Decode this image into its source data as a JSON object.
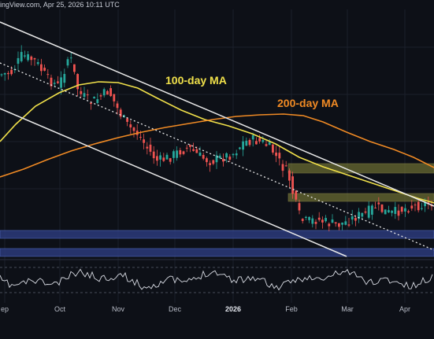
{
  "header": {
    "text": "ingView.com, Apr 25, 2026 10:11 UTC"
  },
  "colors": {
    "background": "#0d1017",
    "grid": "#1b202b",
    "up": "#26a69a",
    "down": "#ef5350",
    "ma100": "#f0e04a",
    "ma200": "#f08a24",
    "trendline": "#e8e8e8",
    "support_band": "#2b3a7a",
    "resistance_band": "#8a8a3a",
    "rsi": "#d8dbe3"
  },
  "chart_data": {
    "type": "candlestick",
    "title": "",
    "x_ticks": [
      "ep",
      "Oct",
      "Nov",
      "Dec",
      "2026",
      "Feb",
      "Mar",
      "Apr"
    ],
    "bold_ticks": [
      "2026"
    ],
    "ma_labels": [
      {
        "text": "100-day MA",
        "series": "ma100"
      },
      {
        "text": "200-day MA",
        "series": "ma200"
      }
    ],
    "series": [
      {
        "name": "",
        "key": "ma100",
        "style": "line"
      },
      {
        "name": "",
        "key": "ma200",
        "style": "line"
      }
    ],
    "annotations": [
      "descending channel",
      "dotted trendline",
      "resistance zones",
      "support zones"
    ],
    "has_rsi_panel": true,
    "grid": true
  }
}
